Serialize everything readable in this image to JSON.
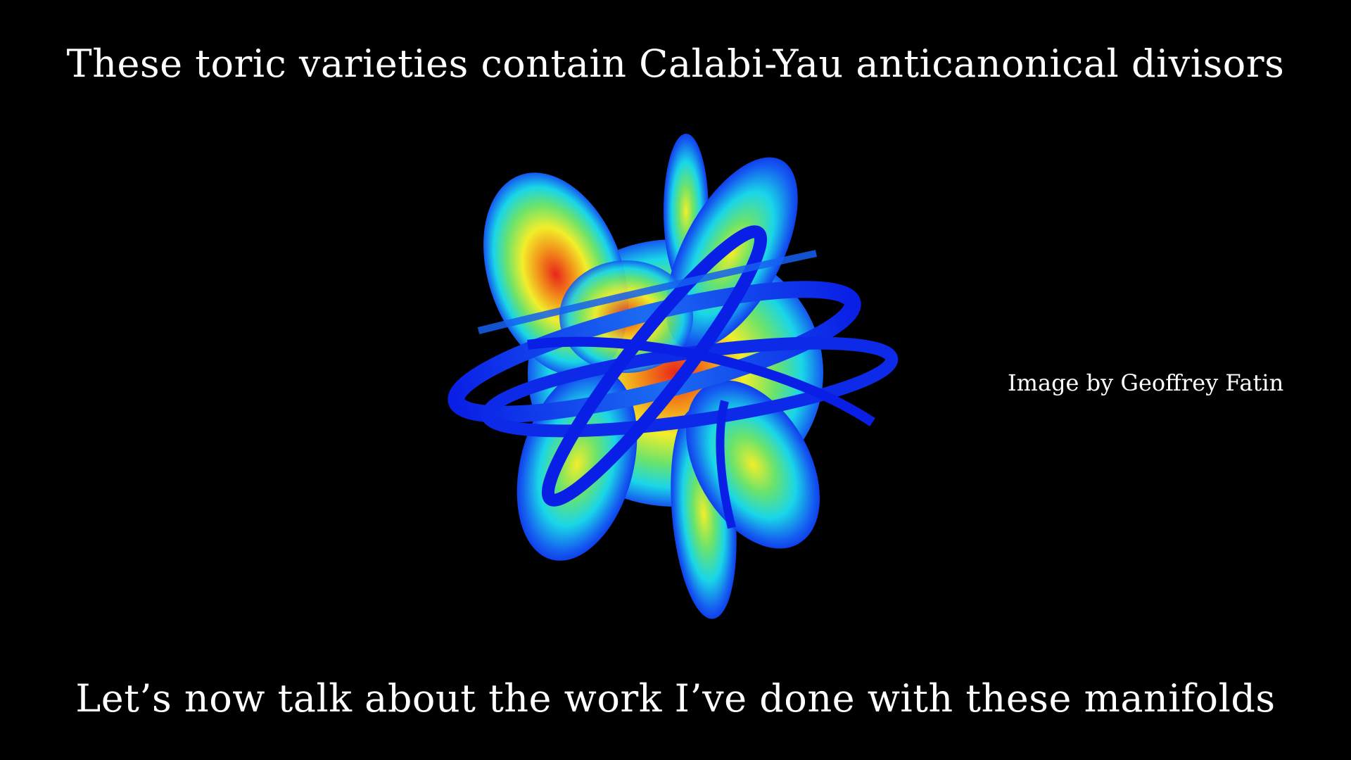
{
  "slide": {
    "title": "These toric varieties contain Calabi-Yau anticanonical divisors",
    "image_credit": "Image by Geoffrey Fatin",
    "footer": "Let’s now talk about the work I’ve done with these manifolds"
  },
  "figure": {
    "subject": "calabi-yau-manifold-render",
    "colors": {
      "background": "#000000",
      "outer_blue": "#0a1fe6",
      "cyan": "#19d6e8",
      "green": "#6be36b",
      "yellow": "#f2ee2a",
      "orange": "#f2901a",
      "red": "#e8261a"
    }
  }
}
